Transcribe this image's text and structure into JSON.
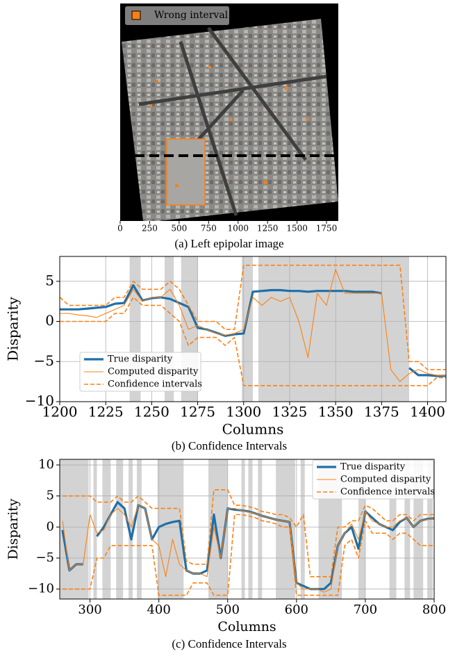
{
  "chart_data": [
    {
      "type": "image",
      "caption": "(a) Left epipolar image",
      "series": [
        {
          "name": "Wrong interval",
          "color": "#ff7f0e"
        }
      ],
      "xlim": [
        0,
        1850
      ],
      "xticks": [
        0,
        250,
        500,
        750,
        1000,
        1250,
        1500,
        1750
      ]
    },
    {
      "type": "line",
      "caption": "(b) Confidence Intervals",
      "xlabel": "Columns",
      "ylabel": "Disparity",
      "legend": "lower left",
      "grid": true,
      "xlim": [
        1200,
        1410
      ],
      "xticks": [
        1200,
        1225,
        1250,
        1275,
        1300,
        1325,
        1350,
        1375,
        1400
      ],
      "ylim": [
        -10,
        8.1
      ],
      "yticks": [
        {
          "value": -10,
          "label": "−10"
        },
        {
          "value": -5,
          "label": "−5"
        },
        0,
        5
      ],
      "shaded_intervals": [
        [
          1238,
          1244
        ],
        [
          1257,
          1262
        ],
        [
          1266,
          1275
        ],
        [
          1299,
          1305
        ],
        [
          1308,
          1390
        ]
      ],
      "x": [
        1200,
        1205,
        1210,
        1215,
        1220,
        1225,
        1230,
        1235,
        1240,
        1245,
        1250,
        1255,
        1260,
        1265,
        1270,
        1275,
        1280,
        1285,
        1290,
        1295,
        1300,
        1305,
        1310,
        1315,
        1320,
        1325,
        1330,
        1335,
        1340,
        1345,
        1350,
        1355,
        1360,
        1365,
        1370,
        1375,
        1380,
        1385,
        1390,
        1395,
        1400,
        1405,
        1410
      ],
      "series": [
        {
          "name": "True disparity",
          "color": "#1f6fa8",
          "values": [
            1.5,
            1.5,
            1.5,
            1.6,
            1.7,
            1.8,
            2.2,
            2.3,
            4.5,
            2.6,
            2.9,
            3.0,
            2.8,
            2.3,
            1.8,
            -0.8,
            -1.0,
            -1.4,
            -1.8,
            -1.6,
            -1.5,
            3.7,
            3.8,
            3.9,
            3.9,
            3.8,
            3.8,
            3.7,
            3.8,
            3.8,
            3.8,
            3.8,
            3.7,
            3.7,
            3.7,
            3.5,
            null,
            null,
            -5.8,
            -6.7,
            -6.7,
            -6.8,
            -6.8
          ]
        },
        {
          "name": "Computed disparity",
          "color": "#ff7f0e",
          "values": [
            1,
            1,
            0.8,
            0.7,
            0.5,
            1,
            1.5,
            2,
            4,
            2.5,
            3,
            3,
            4,
            2,
            -1,
            -0.5,
            -1,
            -1.5,
            -1.7,
            -1.5,
            -1,
            3,
            2,
            3,
            2.5,
            3,
            0,
            -4.5,
            3.5,
            2,
            6.5,
            3.5,
            3.5,
            3.5,
            3.5,
            3.5,
            -6,
            -7.5,
            -6.5,
            -6,
            -6.5,
            -6.7,
            -6.8
          ]
        },
        {
          "name": "Confidence intervals",
          "color": "#ff7f0e",
          "dashed": true,
          "upper": [
            3,
            2,
            2,
            2,
            2,
            2,
            3,
            3,
            5,
            4,
            4,
            4,
            5,
            4,
            2,
            0,
            0,
            0,
            -1,
            -1,
            7,
            7,
            7,
            7,
            7,
            7,
            7,
            7,
            7,
            7,
            7,
            7,
            7,
            7,
            7,
            7,
            7,
            7,
            -5,
            -5,
            -6,
            -6,
            -6
          ],
          "lower": [
            0,
            0,
            0,
            0,
            0,
            0,
            1,
            1,
            3,
            2,
            2,
            2,
            1,
            0,
            -3,
            -2,
            -2,
            -2,
            -3,
            -2,
            -8,
            -8,
            -8,
            -8,
            -8,
            -8,
            -8,
            -8,
            -8,
            -8,
            -8,
            -8,
            -8,
            -8,
            -8,
            -8,
            -8,
            -8,
            -8,
            -8,
            -8,
            -7,
            -7
          ]
        }
      ]
    },
    {
      "type": "line",
      "caption": "(c) Confidence Intervals",
      "xlabel": "Columns",
      "ylabel": "Disparity",
      "legend": "upper right",
      "grid": true,
      "xlim": [
        256,
        800
      ],
      "xticks": [
        300,
        400,
        500,
        600,
        700,
        800
      ],
      "ylim": [
        -11.6,
        10.9
      ],
      "yticks": [
        {
          "value": -10,
          "label": "−10"
        },
        {
          "value": -5,
          "label": "−5"
        },
        0,
        5,
        10
      ],
      "shaded_intervals": [
        [
          256,
          298
        ],
        [
          305,
          310
        ],
        [
          318,
          330
        ],
        [
          338,
          348
        ],
        [
          356,
          362
        ],
        [
          368,
          375
        ],
        [
          398,
          436
        ],
        [
          472,
          500
        ],
        [
          520,
          525
        ],
        [
          530,
          536
        ],
        [
          544,
          550
        ],
        [
          570,
          598
        ],
        [
          606,
          612
        ],
        [
          632,
          666
        ],
        [
          690,
          700
        ],
        [
          735,
          745
        ],
        [
          757,
          765
        ],
        [
          770,
          784
        ],
        [
          790,
          798
        ]
      ],
      "x": [
        260,
        270,
        280,
        290,
        300,
        310,
        320,
        330,
        340,
        350,
        360,
        370,
        380,
        390,
        400,
        410,
        420,
        430,
        440,
        450,
        460,
        470,
        480,
        490,
        500,
        510,
        520,
        530,
        540,
        550,
        560,
        570,
        580,
        590,
        600,
        610,
        620,
        630,
        640,
        650,
        660,
        670,
        680,
        690,
        700,
        710,
        720,
        730,
        740,
        750,
        760,
        770,
        780,
        790,
        800
      ],
      "series": [
        {
          "name": "True disparity",
          "color": "#1f6fa8",
          "values": [
            -0.5,
            -7,
            -6,
            -6,
            null,
            -1.5,
            0,
            2,
            4,
            3,
            -2,
            3.5,
            3,
            -2,
            0,
            0.5,
            0.8,
            1,
            -7,
            -7.5,
            -7.5,
            -7,
            2,
            -5,
            3,
            2.8,
            2.7,
            2.5,
            2.2,
            1.8,
            1.5,
            1.2,
            1,
            0.8,
            -9,
            -9.5,
            -10,
            -10,
            -10,
            -9,
            -3,
            -1,
            0,
            -3.5,
            2.5,
            1.5,
            0.5,
            0,
            -0.5,
            0.8,
            1.5,
            0,
            1,
            1.3,
            1.4
          ]
        },
        {
          "name": "Computed disparity",
          "color": "#ff7f0e",
          "values": [
            1,
            -7,
            -6,
            -6,
            2,
            -1,
            -0.5,
            2,
            3,
            2,
            0,
            3.5,
            3,
            -2,
            -3,
            -8,
            -2,
            -6,
            -7,
            -7.5,
            -7.5,
            -8,
            0,
            -5,
            3,
            3,
            2.7,
            2.4,
            2.2,
            1.8,
            1.5,
            1.2,
            1,
            0.8,
            -9,
            -10,
            -10,
            -10,
            -10.5,
            -10,
            -3,
            -1,
            0.5,
            -2,
            2.5,
            1,
            0.5,
            0,
            0,
            1,
            1.5,
            0,
            1,
            1.2,
            1.4
          ]
        },
        {
          "name": "Confidence intervals",
          "color": "#ff7f0e",
          "dashed": true,
          "upper": [
            5,
            5,
            5,
            5,
            5,
            4,
            4,
            4,
            5,
            4,
            4,
            5,
            4,
            3,
            3,
            3,
            3,
            3,
            -5.5,
            -6,
            -6,
            -6,
            6,
            6,
            6,
            3.5,
            3.5,
            3.3,
            3,
            2.5,
            2.3,
            2,
            2,
            1.5,
            0,
            2,
            -8,
            -8,
            -8,
            -8,
            0,
            0,
            1,
            1,
            3.5,
            3,
            2,
            1,
            1,
            2,
            2,
            1,
            2,
            2,
            2
          ],
          "lower": [
            -10,
            -10,
            -10,
            -10,
            -10,
            -5,
            -5,
            -3,
            -3,
            -3,
            -3,
            -3,
            -3,
            -3,
            -11,
            -11,
            -11,
            -11,
            -11,
            -9,
            -9,
            -9,
            -11,
            -11,
            -11,
            2,
            2,
            1.8,
            1.5,
            1,
            0.8,
            0.5,
            0,
            0,
            -11,
            -11,
            -11,
            -11,
            -11,
            -11,
            -11,
            -3,
            -2,
            -5,
            1,
            -1,
            -1,
            -1,
            -2,
            -1,
            -1,
            -2,
            -3,
            -3,
            -3
          ]
        }
      ]
    }
  ]
}
